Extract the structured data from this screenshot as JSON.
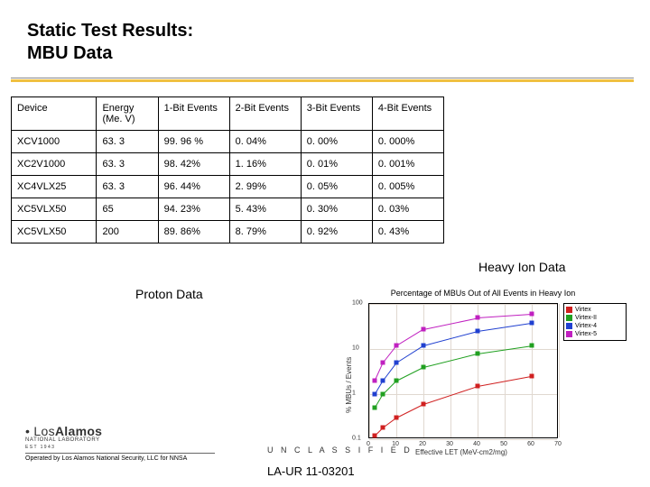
{
  "title_line1": "Static Test Results:",
  "title_line2": "MBU Data",
  "table": {
    "columns": [
      "Device",
      "Energy (Me. V)",
      "1-Bit Events",
      "2-Bit Events",
      "3-Bit Events",
      "4-Bit Events"
    ],
    "rows": [
      [
        "XCV1000",
        "63. 3",
        "99. 96 %",
        "0. 04%",
        "0. 00%",
        "0. 000%"
      ],
      [
        "XC2V1000",
        "63. 3",
        "98. 42%",
        "1. 16%",
        "0. 01%",
        "0. 001%"
      ],
      [
        "XC4VLX25",
        "63. 3",
        "96. 44%",
        "2. 99%",
        "0. 05%",
        "0. 005%"
      ],
      [
        "XC5VLX50",
        "65",
        "94. 23%",
        "5. 43%",
        "0. 30%",
        "0. 03%"
      ],
      [
        "XC5VLX50",
        "200",
        "89. 86%",
        "8. 79%",
        "0. 92%",
        "0. 43%"
      ]
    ]
  },
  "labels": {
    "proton": "Proton Data",
    "heavy": "Heavy Ion Data"
  },
  "chart": {
    "title": "Percentage of MBUs Out of All Events in Heavy Ion",
    "xlabel": "Effective LET (MeV-cm2/mg)",
    "ylabel": "% MBUs / Events",
    "xlim": [
      0,
      70
    ],
    "ylim_log": [
      0.1,
      100
    ],
    "yticks": [
      0.1,
      1,
      10,
      100
    ],
    "xticks": [
      0,
      10,
      20,
      30,
      40,
      50,
      60,
      70
    ],
    "grid_color": "#e0d8d0",
    "legend": [
      {
        "label": "Virtex",
        "color": "#d02020",
        "marker": "plus"
      },
      {
        "label": "Virtex-II",
        "color": "#20a020",
        "marker": "x"
      },
      {
        "label": "Virtex-4",
        "color": "#2040d0",
        "marker": "star"
      },
      {
        "label": "Virtex-5",
        "color": "#c020c0",
        "marker": "square"
      }
    ],
    "series": {
      "Virtex": {
        "color": "#d02020",
        "points": [
          [
            2,
            0.12
          ],
          [
            5,
            0.18
          ],
          [
            10,
            0.3
          ],
          [
            20,
            0.6
          ],
          [
            40,
            1.5
          ],
          [
            60,
            2.5
          ]
        ]
      },
      "Virtex-II": {
        "color": "#20a020",
        "points": [
          [
            2,
            0.5
          ],
          [
            5,
            1.0
          ],
          [
            10,
            2.0
          ],
          [
            20,
            4.0
          ],
          [
            40,
            8.0
          ],
          [
            60,
            12.0
          ]
        ]
      },
      "Virtex-4": {
        "color": "#2040d0",
        "points": [
          [
            2,
            1.0
          ],
          [
            5,
            2.0
          ],
          [
            10,
            5.0
          ],
          [
            20,
            12.0
          ],
          [
            40,
            25.0
          ],
          [
            60,
            38.0
          ]
        ]
      },
      "Virtex-5": {
        "color": "#c020c0",
        "points": [
          [
            2,
            2.0
          ],
          [
            5,
            5.0
          ],
          [
            10,
            12.0
          ],
          [
            20,
            28.0
          ],
          [
            40,
            50.0
          ],
          [
            60,
            60.0
          ]
        ]
      }
    }
  },
  "footer": {
    "logo_los": "Los",
    "logo_alamos": "Alamos",
    "logo_sub": "NATIONAL LABORATORY",
    "logo_est": "EST 1943",
    "operated": "Operated by Los Alamos National Security, LLC for NNSA",
    "unclassified": "U N C L A S S I F I E D",
    "laur": "LA-UR 11-03201"
  }
}
